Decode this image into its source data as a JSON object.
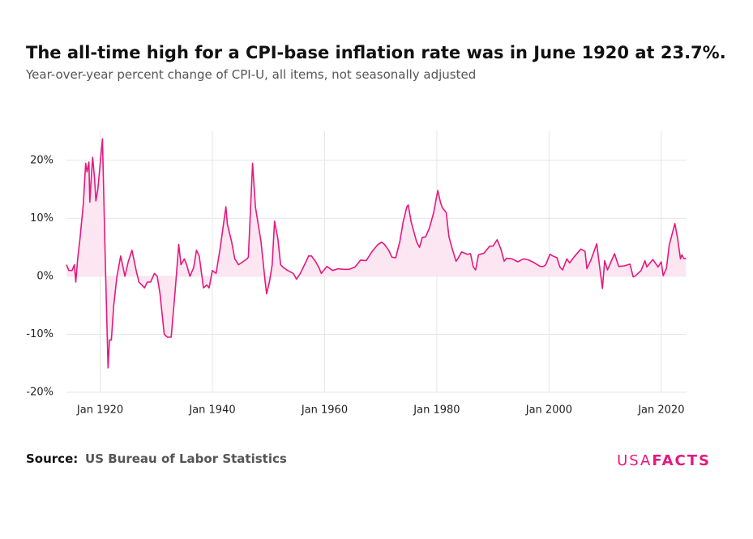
{
  "chart_data": {
    "type": "area-line",
    "title": "The all-time high for a CPI-base inflation rate was in June 1920 at 23.7%.",
    "subtitle": "Year-over-year percent change of CPI-U, all items, not seasonally adjusted",
    "source_label": "Source:",
    "source": "US Bureau of Labor Statistics",
    "brand": [
      "USA",
      "FACTS"
    ],
    "color": "#e4197f",
    "fill": "#fce6f1",
    "grid": true,
    "xlim": [
      "1914-01",
      "2024-07"
    ],
    "xticks": [
      {
        "value": "1920-01",
        "label": "Jan 1920"
      },
      {
        "value": "1940-01",
        "label": "Jan 1940"
      },
      {
        "value": "1960-01",
        "label": "Jan 1960"
      },
      {
        "value": "1980-01",
        "label": "Jan 1980"
      },
      {
        "value": "2000-01",
        "label": "Jan 2000"
      },
      {
        "value": "2020-01",
        "label": "Jan 2020"
      }
    ],
    "ylim": [
      -20,
      25
    ],
    "yticks": [
      {
        "value": -20,
        "label": "-20%"
      },
      {
        "value": -10,
        "label": "-10%"
      },
      {
        "value": 0,
        "label": "0%"
      },
      {
        "value": 10,
        "label": "10%"
      },
      {
        "value": 20,
        "label": "20%"
      }
    ],
    "x": [
      "1914-01",
      "1914-06",
      "1915-01",
      "1915-06",
      "1915-09",
      "1916-01",
      "1916-06",
      "1917-01",
      "1917-06",
      "1917-09",
      "1918-01",
      "1918-03",
      "1918-06",
      "1918-09",
      "1919-01",
      "1919-04",
      "1919-08",
      "1920-06",
      "1920-12",
      "1921-06",
      "1921-09",
      "1922-01",
      "1922-06",
      "1923-01",
      "1923-09",
      "1924-06",
      "1925-01",
      "1925-09",
      "1926-06",
      "1926-12",
      "1927-06",
      "1927-12",
      "1928-06",
      "1929-01",
      "1929-09",
      "1930-03",
      "1930-09",
      "1931-06",
      "1932-01",
      "1932-09",
      "1933-06",
      "1934-01",
      "1934-06",
      "1935-01",
      "1935-06",
      "1936-01",
      "1936-09",
      "1937-03",
      "1937-09",
      "1938-06",
      "1939-01",
      "1939-06",
      "1940-01",
      "1940-09",
      "1941-06",
      "1942-06",
      "1942-09",
      "1943-06",
      "1944-01",
      "1944-09",
      "1945-06",
      "1946-03",
      "1946-06",
      "1947-03",
      "1947-09",
      "1948-03",
      "1948-09",
      "1949-06",
      "1949-09",
      "1950-03",
      "1950-09",
      "1951-02",
      "1951-09",
      "1952-03",
      "1952-09",
      "1953-06",
      "1954-06",
      "1955-01",
      "1955-09",
      "1956-06",
      "1957-03",
      "1957-09",
      "1958-06",
      "1959-01",
      "1959-06",
      "1960-06",
      "1961-06",
      "1962-06",
      "1963-06",
      "1964-06",
      "1965-06",
      "1966-06",
      "1967-06",
      "1968-06",
      "1969-06",
      "1970-03",
      "1970-09",
      "1971-06",
      "1972-01",
      "1972-09",
      "1973-06",
      "1974-01",
      "1974-09",
      "1974-12",
      "1975-06",
      "1976-06",
      "1976-12",
      "1977-06",
      "1978-01",
      "1978-09",
      "1979-06",
      "1980-03",
      "1980-09",
      "1981-01",
      "1981-09",
      "1982-03",
      "1982-09",
      "1983-06",
      "1983-09",
      "1984-06",
      "1985-06",
      "1986-01",
      "1986-07",
      "1986-12",
      "1987-06",
      "1988-06",
      "1989-06",
      "1990-01",
      "1990-10",
      "1991-06",
      "1992-01",
      "1992-06",
      "1993-06",
      "1994-06",
      "1995-06",
      "1996-06",
      "1997-06",
      "1998-06",
      "1999-01",
      "1999-06",
      "2000-03",
      "2000-09",
      "2001-06",
      "2001-12",
      "2002-06",
      "2003-03",
      "2003-09",
      "2004-06",
      "2005-09",
      "2006-06",
      "2006-10",
      "2007-06",
      "2008-07",
      "2009-07",
      "2009-12",
      "2010-06",
      "2011-09",
      "2012-06",
      "2013-06",
      "2014-06",
      "2015-01",
      "2015-06",
      "2016-06",
      "2017-02",
      "2017-06",
      "2018-07",
      "2019-06",
      "2020-01",
      "2020-05",
      "2020-12",
      "2021-06",
      "2022-06",
      "2022-12",
      "2023-06",
      "2023-09",
      "2024-01",
      "2024-06"
    ],
    "values": [
      2.0,
      1.0,
      1.0,
      2.0,
      -1.0,
      3.0,
      6.5,
      12.5,
      19.5,
      18.0,
      19.7,
      12.8,
      17.0,
      20.5,
      17.0,
      13.0,
      15.0,
      23.7,
      2.7,
      -15.8,
      -11.0,
      -11.0,
      -5.0,
      0.0,
      3.5,
      0.0,
      2.5,
      4.5,
      1.0,
      -1.0,
      -1.5,
      -2.0,
      -1.0,
      -1.0,
      0.5,
      0.0,
      -3.0,
      -10.0,
      -10.5,
      -10.5,
      -2.0,
      5.5,
      2.0,
      3.0,
      2.0,
      0.0,
      1.5,
      4.5,
      3.5,
      -2.0,
      -1.5,
      -2.0,
      1.0,
      0.5,
      5.0,
      12.0,
      9.0,
      6.0,
      3.0,
      2.0,
      2.5,
      3.0,
      3.3,
      19.5,
      12.0,
      9.0,
      6.0,
      -1.0,
      -3.0,
      -1.0,
      2.0,
      9.5,
      6.5,
      2.0,
      1.5,
      1.0,
      0.5,
      -0.5,
      0.5,
      2.0,
      3.5,
      3.5,
      2.5,
      1.5,
      0.5,
      1.7,
      1.0,
      1.3,
      1.2,
      1.2,
      1.6,
      2.8,
      2.7,
      4.2,
      5.4,
      5.9,
      5.5,
      4.5,
      3.3,
      3.2,
      6.0,
      9.4,
      12.0,
      12.3,
      9.4,
      5.9,
      5.0,
      6.7,
      6.8,
      8.3,
      10.9,
      14.8,
      12.7,
      11.8,
      11.0,
      6.8,
      5.0,
      2.6,
      2.9,
      4.2,
      3.8,
      3.9,
      1.6,
      1.1,
      3.7,
      4.0,
      5.2,
      5.2,
      6.3,
      4.7,
      2.6,
      3.1,
      3.0,
      2.5,
      3.0,
      2.8,
      2.3,
      1.7,
      1.7,
      2.0,
      3.8,
      3.5,
      3.2,
      1.6,
      1.1,
      3.0,
      2.3,
      3.3,
      4.7,
      4.3,
      1.3,
      2.7,
      5.6,
      -2.1,
      2.7,
      1.1,
      3.9,
      1.7,
      1.8,
      2.1,
      -0.1,
      0.1,
      1.0,
      2.7,
      1.6,
      2.9,
      1.6,
      2.5,
      0.1,
      1.4,
      5.4,
      9.1,
      6.5,
      3.0,
      3.7,
      3.1,
      3.0
    ]
  }
}
